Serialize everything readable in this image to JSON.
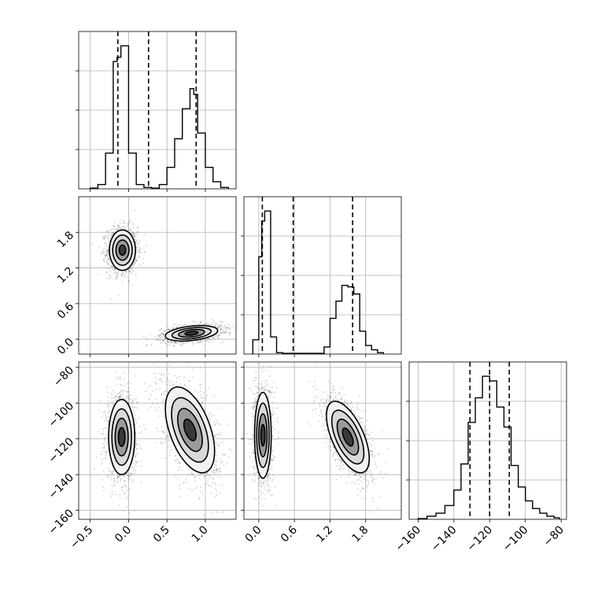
{
  "chart_data": {
    "type": "scatter",
    "grid": true,
    "parameters": [
      {
        "range": [
          -0.65,
          1.4
        ],
        "ticks": [
          -0.5,
          0.0,
          0.5,
          1.0
        ],
        "tick_labels": [
          "−0.5",
          "0.0",
          "0.5",
          "1.0"
        ],
        "quantiles": [
          -0.14,
          0.26,
          0.88
        ]
      },
      {
        "range": [
          -0.25,
          2.4
        ],
        "ticks": [
          0.0,
          0.6,
          1.2,
          1.8
        ],
        "tick_labels": [
          "0.0",
          "0.6",
          "1.2",
          "1.8"
        ],
        "quantiles": [
          0.06,
          0.58,
          1.58
        ]
      },
      {
        "range": [
          -165,
          -77
        ],
        "ticks": [
          -160,
          -140,
          -120,
          -100,
          -80
        ],
        "tick_labels": [
          "−160",
          "−140",
          "−120",
          "−100",
          "−80"
        ],
        "quantiles": [
          -131,
          -120,
          -109
        ]
      }
    ],
    "histograms": [
      {
        "param": 0,
        "edges": [
          -0.5,
          -0.4,
          -0.3,
          -0.2,
          -0.15,
          -0.1,
          0.0,
          0.1,
          0.2,
          0.3,
          0.4,
          0.5,
          0.6,
          0.7,
          0.8,
          0.85,
          0.9,
          1.0,
          1.1,
          1.2,
          1.3
        ],
        "counts": [
          0.5,
          3,
          25,
          89,
          92,
          100,
          25,
          3,
          1,
          0.5,
          3,
          15,
          35,
          56,
          70,
          66,
          39,
          15,
          5,
          1
        ]
      },
      {
        "param": 1,
        "edges": [
          -0.1,
          0.0,
          0.05,
          0.1,
          0.2,
          0.3,
          0.4,
          0.5,
          0.6,
          0.7,
          0.8,
          0.9,
          1.0,
          1.1,
          1.2,
          1.3,
          1.4,
          1.5,
          1.6,
          1.7,
          1.8,
          1.9,
          2.0,
          2.1
        ],
        "counts": [
          10,
          68,
          93,
          100,
          12,
          1,
          0.5,
          0.5,
          0.5,
          0.5,
          0.5,
          0.5,
          0.5,
          5,
          25,
          37,
          48,
          47,
          42,
          16,
          6,
          3,
          1
        ]
      },
      {
        "param": 2,
        "edges": [
          -160,
          -155,
          -150,
          -145,
          -140,
          -136,
          -132,
          -128,
          -124,
          -120,
          -116,
          -112,
          -108,
          -104,
          -100,
          -96,
          -92,
          -88,
          -84,
          -81
        ],
        "counts": [
          0.5,
          2,
          4,
          9,
          19,
          36,
          63,
          79,
          93,
          90,
          73,
          60,
          35,
          21,
          12,
          7,
          4,
          2,
          1
        ]
      }
    ],
    "pairs": [
      {
        "x_param": 0,
        "y_param": 1,
        "clusters": [
          {
            "center": [
              -0.08,
              1.5
            ],
            "spread": [
              0.085,
              0.17
            ],
            "rho": 0.0
          },
          {
            "center": [
              0.82,
              0.1
            ],
            "spread": [
              0.17,
              0.065
            ],
            "rho": 0.35
          }
        ]
      },
      {
        "x_param": 0,
        "y_param": 2,
        "clusters": [
          {
            "center": [
              -0.09,
              -119
            ],
            "spread": [
              0.085,
              10.5
            ],
            "rho": 0.0
          },
          {
            "center": [
              0.8,
              -115
            ],
            "spread": [
              0.16,
              12.0
            ],
            "rho": -0.5
          }
        ]
      },
      {
        "x_param": 1,
        "y_param": 2,
        "clusters": [
          {
            "center": [
              0.07,
              -118
            ],
            "spread": [
              0.07,
              12.0
            ],
            "rho": 0.0
          },
          {
            "center": [
              1.5,
              -119
            ],
            "spread": [
              0.18,
              10.0
            ],
            "rho": -0.6
          }
        ]
      }
    ]
  }
}
